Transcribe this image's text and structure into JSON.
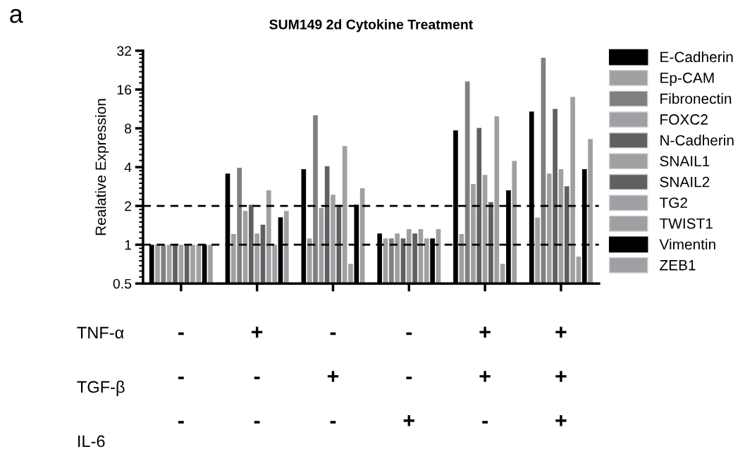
{
  "chart_data": {
    "type": "bar",
    "title": "SUM149 2d Cytokine Treatment",
    "ylabel": "Realative Expression",
    "categories": [
      "-\n-\n-",
      "+\n-\n-",
      "-\n+\n-",
      "-\n-\n+",
      "+\n+\n-",
      "+\n+\n+"
    ],
    "annotations": [
      "a",
      "TNF-α",
      "TGF-β",
      "IL-6"
    ],
    "log": true,
    "ylim": [
      0.5,
      32
    ],
    "yticks": [
      0.5,
      1,
      2,
      4,
      8,
      16,
      32
    ],
    "grid": false,
    "legend": "right",
    "ref_lines": [
      {
        "axis": "y",
        "value": 1,
        "label": null,
        "color": "#000000",
        "line_style": "dashed"
      },
      {
        "axis": "y",
        "value": 2,
        "label": null,
        "color": "#000000",
        "line_style": "dashed"
      }
    ],
    "series": [
      {
        "name": "E-Cadherin",
        "color": "#000000",
        "values": [
          1,
          3.56,
          3.85,
          1.22,
          7.7,
          10.8
        ]
      },
      {
        "name": "Ep-CAM",
        "color": "#a0a0a4",
        "values": [
          1,
          1.21,
          1.12,
          1.12,
          1.21,
          1.62
        ]
      },
      {
        "name": "Fibronectin",
        "color": "#808080",
        "values": [
          1,
          3.95,
          10.1,
          1.12,
          18.5,
          28.2
        ]
      },
      {
        "name": "FOXC2",
        "color": "#a0a0a4",
        "values": [
          1,
          1.83,
          1.93,
          1.22,
          2.96,
          3.56
        ]
      },
      {
        "name": "N-Cadherin",
        "color": "#606060",
        "values": [
          1,
          2.04,
          4.07,
          1.12,
          8.05,
          11.3
        ]
      },
      {
        "name": "SNAIL1",
        "color": "#a0a0a4",
        "values": [
          1,
          1.22,
          2.44,
          1.32,
          3.47,
          3.85
        ]
      },
      {
        "name": "SNAIL2",
        "color": "#606060",
        "values": [
          1,
          1.43,
          2.04,
          1.22,
          2.14,
          2.84
        ]
      },
      {
        "name": "TG2",
        "color": "#a0a0a4",
        "values": [
          1,
          2.64,
          5.82,
          1.32,
          9.9,
          14.0
        ]
      },
      {
        "name": "TWIST1",
        "color": "#a0a0a4",
        "values": [
          1,
          1.0,
          0.71,
          1.12,
          0.71,
          0.81
        ]
      },
      {
        "name": "Vimentin",
        "color": "#000000",
        "values": [
          1,
          1.63,
          2.04,
          1.12,
          2.64,
          3.85
        ]
      },
      {
        "name": "ZEB1",
        "color": "#a0a0a4",
        "values": [
          1,
          1.83,
          2.74,
          1.32,
          4.47,
          6.6
        ]
      }
    ]
  }
}
